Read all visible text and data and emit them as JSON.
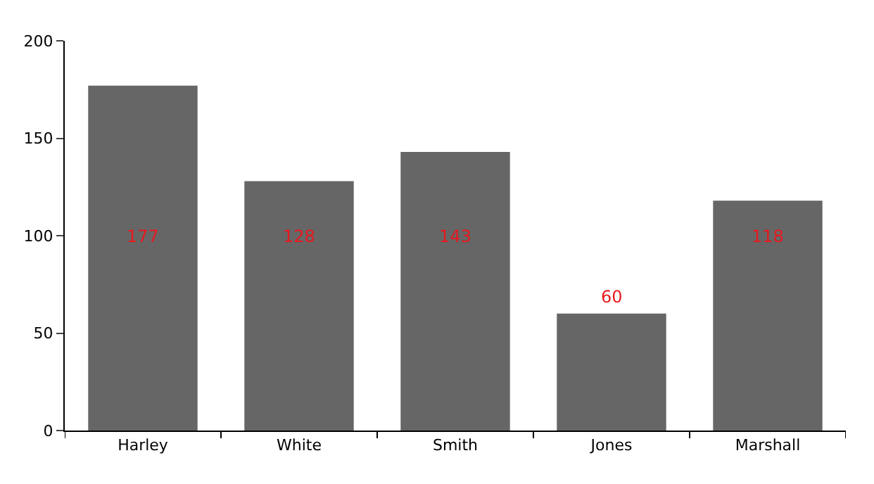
{
  "chart_data": {
    "type": "bar",
    "categories": [
      "Harley",
      "White",
      "Smith",
      "Jones",
      "Marshall"
    ],
    "values": [
      177,
      128,
      143,
      60,
      118
    ],
    "value_labels": [
      "177",
      "128",
      "143",
      "60",
      "118"
    ],
    "color": "#666666",
    "ylim": [
      0,
      200
    ],
    "yticks": [
      0,
      50,
      100,
      150,
      200
    ]
  }
}
